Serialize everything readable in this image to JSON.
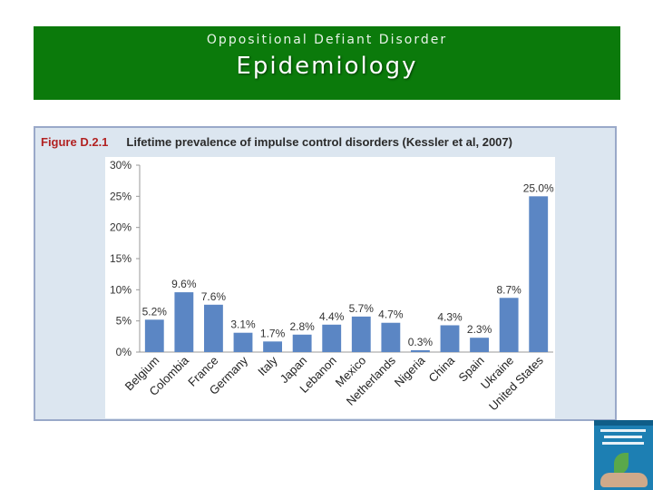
{
  "header": {
    "supertitle": "Oppositional Defiant Disorder",
    "title": "Epidemiology"
  },
  "figure": {
    "label": "Figure D.2.1",
    "caption": "Lifetime prevalence of impulse control disorders (Kessler et al, 2007)"
  },
  "chart_data": {
    "type": "bar",
    "title": "Lifetime prevalence of impulse control disorders (Kessler et al, 2007)",
    "categories": [
      "Belgium",
      "Colombia",
      "France",
      "Germany",
      "Italy",
      "Japan",
      "Lebanon",
      "Mexico",
      "Netherlands",
      "Nigeria",
      "China",
      "Spain",
      "Ukraine",
      "United States"
    ],
    "values": [
      5.2,
      9.6,
      7.6,
      3.1,
      1.7,
      2.8,
      4.4,
      5.7,
      4.7,
      0.3,
      4.3,
      2.3,
      8.7,
      25.0
    ],
    "data_labels": [
      "5.2%",
      "9.6%",
      "7.6%",
      "3.1%",
      "1.7%",
      "2.8%",
      "4.4%",
      "5.7%",
      "4.7%",
      "0.3%",
      "4.3%",
      "2.3%",
      "8.7%",
      "25.0%"
    ],
    "yticks": [
      0,
      5,
      10,
      15,
      20,
      25,
      30
    ],
    "ytick_labels": [
      "0%",
      "5%",
      "10%",
      "15%",
      "20%",
      "25%",
      "30%"
    ],
    "ylim": [
      0,
      30
    ],
    "xlabel": "",
    "ylabel": "",
    "grid": false,
    "bar_color": "#5b86c4"
  },
  "colors": {
    "banner": "#0b7a0b",
    "figure_bg": "#dce6f0",
    "figure_label": "#b22222"
  },
  "book_icon": "book-cover-icon"
}
